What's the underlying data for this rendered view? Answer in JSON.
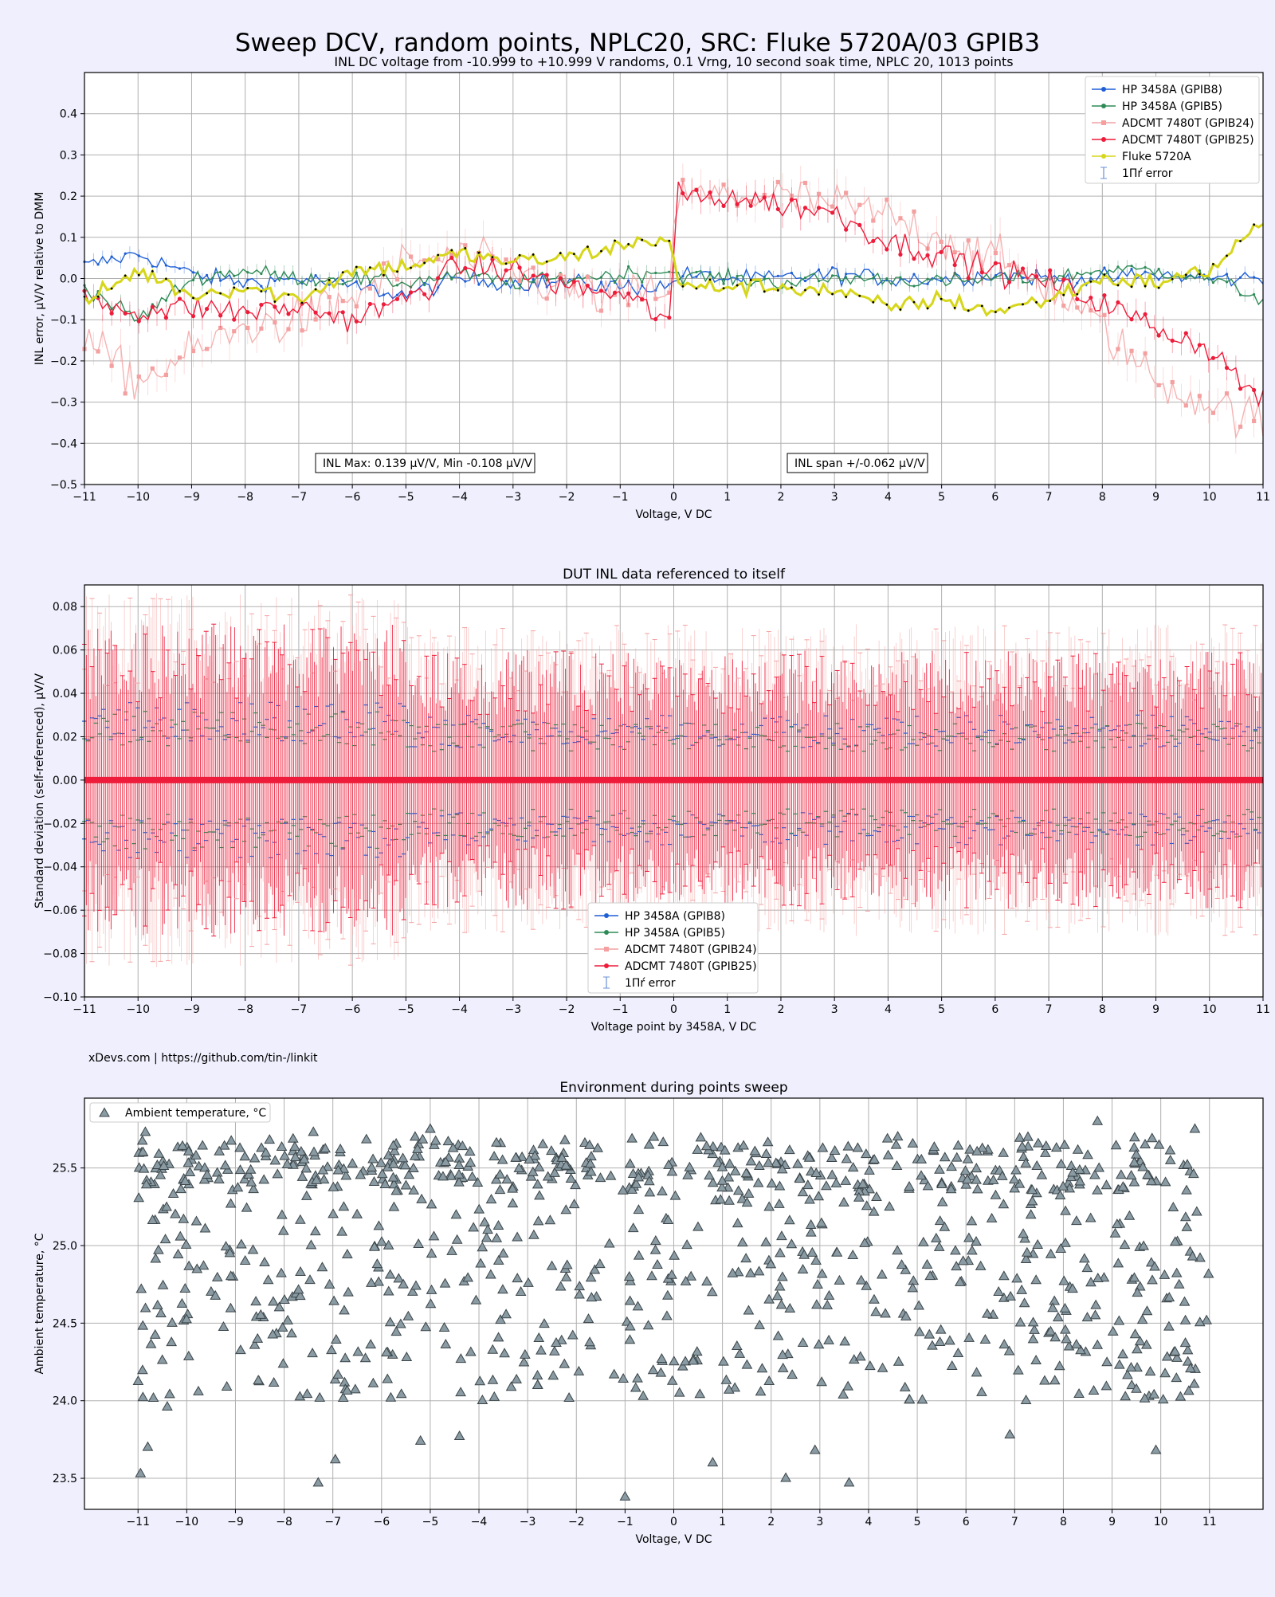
{
  "page": {
    "title": "Sweep DCV, random points, NPLC20, SRC: Fluke 5720A/03 GPIB3",
    "footer_credit": "xDevs.com | https://github.com/tin-/linkit"
  },
  "chart_data": [
    {
      "type": "line",
      "title": "INL DC voltage from -10.999 to +10.999 V randoms, 0.1 Vrng, 10 second soak time, NPLC 20, 1013 points",
      "xlabel": "Voltage, V DC",
      "ylabel": "INL error, µV/V relative to DMM",
      "xlim": [
        -11,
        11
      ],
      "ylim": [
        -0.5,
        0.5
      ],
      "xticks": [
        -11,
        -10,
        -9,
        -8,
        -7,
        -6,
        -5,
        -4,
        -3,
        -2,
        -1,
        0,
        1,
        2,
        3,
        4,
        5,
        6,
        7,
        8,
        9,
        10,
        11
      ],
      "yticks": [
        -0.5,
        -0.4,
        -0.3,
        -0.2,
        -0.1,
        0.0,
        0.1,
        0.2,
        0.3,
        0.4
      ],
      "ytick_labels": [
        "−0.5",
        "−0.4",
        "−0.3",
        "−0.2",
        "−0.1",
        "0.0",
        "0.1",
        "0.2",
        "0.3",
        "0.4"
      ],
      "grid": true,
      "legend_position": "top-right",
      "legend_error_label": "1Πŕ error",
      "annotations": [
        "INL Max: 0.139 µV/V, Min -0.108 µV/V",
        "INL span +/-0.062 µV/V"
      ],
      "x": [
        -11,
        -10,
        -9,
        -8,
        -7,
        -6,
        -5,
        -4,
        -3,
        -2,
        -1,
        -0.05,
        0.05,
        1,
        2,
        3,
        4,
        5,
        6,
        7,
        8,
        9,
        10,
        11
      ],
      "series": [
        {
          "name": "HP 3458A (GPIB8)",
          "color": "#1f5fd6",
          "marker": "star",
          "values": [
            0.03,
            0.06,
            0.01,
            -0.01,
            0.0,
            -0.02,
            -0.04,
            0.0,
            -0.01,
            -0.01,
            -0.02,
            -0.02,
            0.01,
            0.0,
            0.0,
            0.01,
            0.0,
            0.0,
            0.01,
            0.0,
            0.0,
            0.01,
            0.0,
            0.0
          ]
        },
        {
          "name": "HP 3458A (GPIB5)",
          "color": "#2e8b57",
          "marker": "pentagon",
          "values": [
            -0.02,
            -0.1,
            0.0,
            0.02,
            0.0,
            0.0,
            -0.01,
            0.01,
            -0.01,
            0.0,
            0.01,
            0.02,
            0.01,
            0.0,
            -0.01,
            0.0,
            0.0,
            -0.01,
            0.0,
            0.0,
            0.02,
            0.02,
            0.0,
            -0.05
          ]
        },
        {
          "name": "ADCMT 7480T (GPIB24)",
          "color": "#f4a0a0",
          "marker": "square",
          "values": [
            -0.15,
            -0.25,
            -0.18,
            -0.12,
            -0.1,
            -0.05,
            0.04,
            0.05,
            0.02,
            -0.03,
            -0.05,
            -0.02,
            0.2,
            0.2,
            0.2,
            0.18,
            0.15,
            0.1,
            0.05,
            -0.02,
            -0.12,
            -0.25,
            -0.3,
            -0.35
          ]
        },
        {
          "name": "ADCMT 7480T (GPIB25)",
          "color": "#ee1c3a",
          "marker": "x",
          "values": [
            -0.05,
            -0.08,
            -0.07,
            -0.08,
            -0.07,
            -0.1,
            -0.05,
            0.03,
            0.02,
            -0.02,
            -0.04,
            -0.1,
            0.2,
            0.2,
            0.18,
            0.16,
            0.09,
            0.06,
            0.02,
            -0.01,
            -0.06,
            -0.12,
            -0.17,
            -0.3
          ]
        },
        {
          "name": "Fluke 5720A",
          "color": "#d6d61a",
          "marker": "dot",
          "values": [
            -0.06,
            0.02,
            -0.04,
            -0.02,
            -0.05,
            0.02,
            0.03,
            0.06,
            0.04,
            0.05,
            0.08,
            0.1,
            -0.02,
            -0.02,
            -0.02,
            -0.03,
            -0.07,
            -0.05,
            -0.08,
            -0.05,
            0.0,
            -0.01,
            0.02,
            0.14
          ]
        }
      ]
    },
    {
      "type": "line",
      "title": "DUT INL data referenced to itself",
      "xlabel": "Voltage point by 3458A, V DC",
      "ylabel": "Standard deviation (self-referenced), µV/V",
      "xlim": [
        -11,
        11
      ],
      "ylim": [
        -0.1,
        0.09
      ],
      "xticks": [
        -11,
        -10,
        -9,
        -8,
        -7,
        -6,
        -5,
        -4,
        -3,
        -2,
        -1,
        0,
        1,
        2,
        3,
        4,
        5,
        6,
        7,
        8,
        9,
        10,
        11
      ],
      "yticks": [
        -0.1,
        -0.08,
        -0.06,
        -0.04,
        -0.02,
        0.0,
        0.02,
        0.04,
        0.06,
        0.08
      ],
      "ytick_labels": [
        "−0.10",
        "−0.08",
        "−0.06",
        "−0.04",
        "−0.02",
        "0.00",
        "0.02",
        "0.04",
        "0.06",
        "0.08"
      ],
      "grid": true,
      "legend_position": "bottom-center",
      "legend_error_label": "1Πŕ error",
      "x": [
        -11,
        -6.3,
        0,
        6,
        11
      ],
      "series": [
        {
          "name": "HP 3458A (GPIB8)",
          "color": "#1f5fd6",
          "marker": "star",
          "values": [
            0,
            0,
            0,
            0,
            0
          ],
          "error": 0.025
        },
        {
          "name": "HP 3458A (GPIB5)",
          "color": "#2e8b57",
          "marker": "pentagon",
          "values": [
            0,
            0,
            0,
            0,
            0
          ],
          "error": 0.022
        },
        {
          "name": "ADCMT 7480T (GPIB24)",
          "color": "#f4a0a0",
          "marker": "square",
          "values": [
            0,
            0,
            0,
            0,
            0
          ],
          "error": 0.06
        },
        {
          "name": "ADCMT 7480T (GPIB25)",
          "color": "#ee1c3a",
          "marker": "x",
          "values": [
            0,
            0,
            0,
            0,
            0
          ],
          "error": 0.05
        }
      ]
    },
    {
      "type": "scatter",
      "title": "Environment during points sweep",
      "xlabel": "Voltage, V DC",
      "ylabel": "Ambient temperature, °C",
      "xlim": [
        -12.1,
        12.1
      ],
      "ylim": [
        23.3,
        25.95
      ],
      "xticks": [
        -11,
        -10,
        -9,
        -8,
        -7,
        -6,
        -5,
        -4,
        -3,
        -2,
        -1,
        0,
        1,
        2,
        3,
        4,
        5,
        6,
        7,
        8,
        9,
        10,
        11
      ],
      "yticks": [
        23.5,
        24.0,
        24.5,
        25.0,
        25.5
      ],
      "ytick_labels": [
        "23.5",
        "24.0",
        "24.5",
        "25.0",
        "25.5"
      ],
      "grid": true,
      "legend_position": "top-left",
      "series": [
        {
          "name": "Ambient temperature, °C",
          "color": "#8a9ba3",
          "marker": "triangle",
          "points": [
            [
              -10.95,
              23.53
            ],
            [
              -10.8,
              23.7
            ],
            [
              -6.95,
              23.62
            ],
            [
              -7.3,
              23.47
            ],
            [
              -1.0,
              23.38
            ],
            [
              0.8,
              23.6
            ],
            [
              2.3,
              23.5
            ],
            [
              3.6,
              23.47
            ],
            [
              2.9,
              23.68
            ],
            [
              9.9,
              23.68
            ],
            [
              -10.9,
              24.02
            ],
            [
              -10.4,
              23.96
            ],
            [
              -5.2,
              23.74
            ],
            [
              -4.4,
              23.77
            ],
            [
              6.9,
              23.78
            ],
            [
              -9.9,
              25.55
            ],
            [
              -10.85,
              25.73
            ],
            [
              -7.4,
              25.73
            ],
            [
              -5.0,
              25.75
            ],
            [
              10.7,
              25.75
            ],
            [
              8.7,
              25.8
            ],
            [
              -8.3,
              25.68
            ],
            [
              4.6,
              25.7
            ],
            [
              -10.3,
              24.5
            ],
            [
              -9.5,
              24.7
            ],
            [
              -8.8,
              24.9
            ],
            [
              -8.1,
              24.6
            ]
          ]
        }
      ]
    }
  ]
}
